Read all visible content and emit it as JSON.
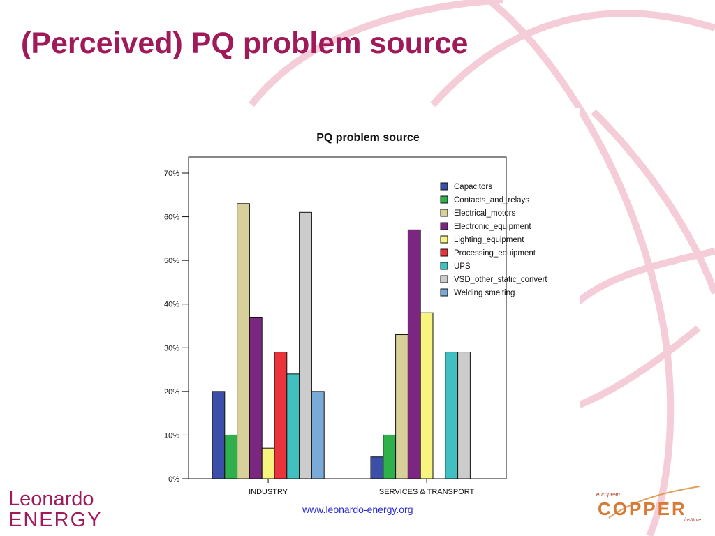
{
  "slide": {
    "title": "(Perceived) PQ problem source",
    "website": "www.leonardo-energy.org",
    "logo_left_line1": "Leonardo",
    "logo_left_line2": "ENERGY",
    "logo_right_small": "european",
    "logo_right_main": "COPPER",
    "logo_right_sub": "institute"
  },
  "colors": {
    "title": "#a01a5a",
    "decoration": "#f4c8d4"
  },
  "chart_data": {
    "type": "bar",
    "title": "PQ problem source",
    "xlabel": "",
    "ylabel": "",
    "categories": [
      "INDUSTRY",
      "SERVICES & TRANSPORT"
    ],
    "ylim": [
      0,
      70
    ],
    "yticks": [
      "0%",
      "10%",
      "20%",
      "30%",
      "40%",
      "50%",
      "60%",
      "70%"
    ],
    "legend_position": "top-right",
    "series": [
      {
        "name": "Capacitors",
        "color": "#3b4fa8",
        "values": [
          20,
          5
        ]
      },
      {
        "name": "Contacts_and_relays",
        "color": "#2eb04a",
        "values": [
          10,
          10
        ]
      },
      {
        "name": "Electrical_motors",
        "color": "#d8d09a",
        "values": [
          63,
          33
        ]
      },
      {
        "name": "Electronic_equipment",
        "color": "#7b2680",
        "values": [
          37,
          57
        ]
      },
      {
        "name": "Lighting_equipment",
        "color": "#f8f480",
        "values": [
          7,
          38
        ]
      },
      {
        "name": "Processing_equipment",
        "color": "#e8343a",
        "values": [
          29,
          0
        ]
      },
      {
        "name": "UPS",
        "color": "#40c0c0",
        "values": [
          24,
          29
        ]
      },
      {
        "name": "VSD_other_static_convert",
        "color": "#cccccc",
        "values": [
          61,
          29
        ]
      },
      {
        "name": "Welding smelting",
        "color": "#7aaad8",
        "values": [
          20,
          0
        ]
      }
    ]
  }
}
